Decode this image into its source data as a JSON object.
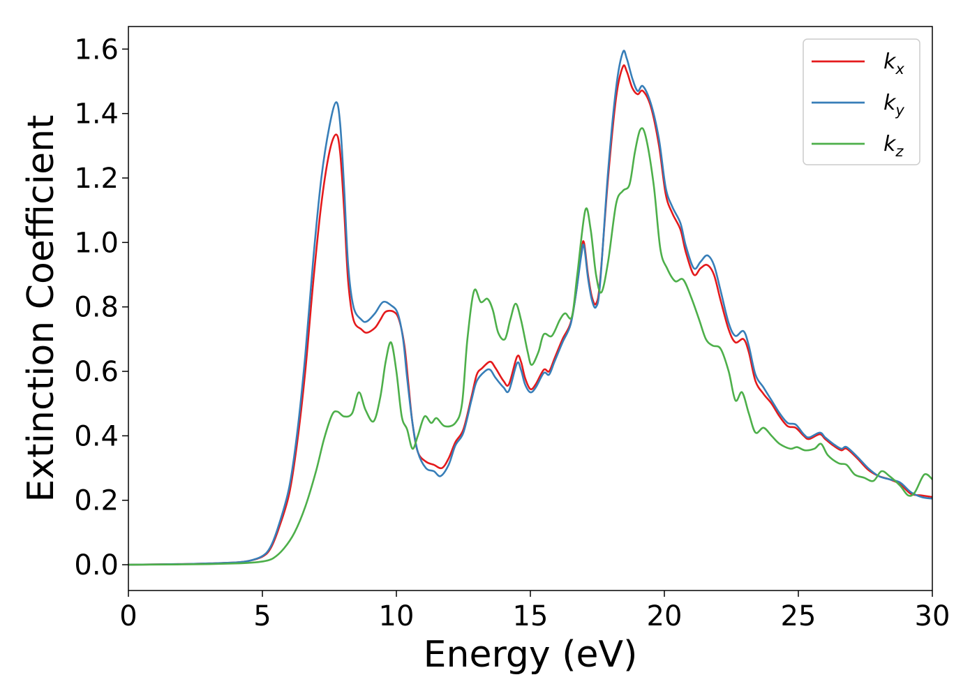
{
  "chart_data": {
    "type": "line",
    "title": "",
    "xlabel": "Energy (eV)",
    "ylabel": "Extinction Coefficient",
    "xlim": [
      0,
      30
    ],
    "ylim": [
      -0.08,
      1.67
    ],
    "xticks": [
      0,
      5,
      10,
      15,
      20,
      25,
      30
    ],
    "xtick_labels": [
      "0",
      "5",
      "10",
      "15",
      "20",
      "25",
      "30"
    ],
    "yticks": [
      0.0,
      0.2,
      0.4,
      0.6,
      0.8,
      1.0,
      1.2,
      1.4,
      1.6
    ],
    "ytick_labels": [
      "0.0",
      "0.2",
      "0.4",
      "0.6",
      "0.8",
      "1.0",
      "1.2",
      "1.4",
      "1.6"
    ],
    "grid": false,
    "legend_position": "top-right",
    "series": [
      {
        "name": "k_x",
        "base": "k",
        "sub": "x",
        "color": "#e41a1c",
        "points": [
          [
            0,
            0
          ],
          [
            2,
            0.002
          ],
          [
            3,
            0.004
          ],
          [
            4,
            0.007
          ],
          [
            4.5,
            0.012
          ],
          [
            5,
            0.025
          ],
          [
            5.3,
            0.05
          ],
          [
            5.6,
            0.11
          ],
          [
            6,
            0.22
          ],
          [
            6.3,
            0.38
          ],
          [
            6.6,
            0.6
          ],
          [
            6.9,
            0.88
          ],
          [
            7.2,
            1.12
          ],
          [
            7.5,
            1.28
          ],
          [
            7.75,
            1.335
          ],
          [
            7.9,
            1.28
          ],
          [
            8.05,
            1.1
          ],
          [
            8.2,
            0.88
          ],
          [
            8.4,
            0.76
          ],
          [
            8.7,
            0.73
          ],
          [
            8.9,
            0.72
          ],
          [
            9.2,
            0.735
          ],
          [
            9.4,
            0.76
          ],
          [
            9.6,
            0.785
          ],
          [
            9.9,
            0.785
          ],
          [
            10.1,
            0.76
          ],
          [
            10.3,
            0.68
          ],
          [
            10.45,
            0.56
          ],
          [
            10.6,
            0.44
          ],
          [
            10.8,
            0.35
          ],
          [
            11.1,
            0.32
          ],
          [
            11.4,
            0.31
          ],
          [
            11.7,
            0.3
          ],
          [
            11.95,
            0.33
          ],
          [
            12.2,
            0.38
          ],
          [
            12.5,
            0.42
          ],
          [
            12.8,
            0.52
          ],
          [
            13,
            0.59
          ],
          [
            13.2,
            0.61
          ],
          [
            13.5,
            0.63
          ],
          [
            13.7,
            0.61
          ],
          [
            14,
            0.57
          ],
          [
            14.2,
            0.56
          ],
          [
            14.5,
            0.645
          ],
          [
            14.65,
            0.63
          ],
          [
            14.8,
            0.58
          ],
          [
            15,
            0.545
          ],
          [
            15.2,
            0.56
          ],
          [
            15.5,
            0.605
          ],
          [
            15.7,
            0.6
          ],
          [
            15.9,
            0.64
          ],
          [
            16.2,
            0.7
          ],
          [
            16.5,
            0.75
          ],
          [
            16.7,
            0.84
          ],
          [
            16.9,
            0.97
          ],
          [
            17,
            1.0
          ],
          [
            17.15,
            0.9
          ],
          [
            17.3,
            0.83
          ],
          [
            17.45,
            0.81
          ],
          [
            17.6,
            0.88
          ],
          [
            17.9,
            1.2
          ],
          [
            18.2,
            1.45
          ],
          [
            18.45,
            1.545
          ],
          [
            18.6,
            1.53
          ],
          [
            18.8,
            1.48
          ],
          [
            19,
            1.46
          ],
          [
            19.2,
            1.47
          ],
          [
            19.5,
            1.42
          ],
          [
            19.8,
            1.3
          ],
          [
            20.05,
            1.15
          ],
          [
            20.3,
            1.09
          ],
          [
            20.6,
            1.04
          ],
          [
            20.8,
            0.97
          ],
          [
            21.1,
            0.9
          ],
          [
            21.35,
            0.92
          ],
          [
            21.6,
            0.93
          ],
          [
            21.85,
            0.9
          ],
          [
            22.1,
            0.82
          ],
          [
            22.4,
            0.73
          ],
          [
            22.65,
            0.69
          ],
          [
            22.95,
            0.7
          ],
          [
            23.15,
            0.66
          ],
          [
            23.4,
            0.57
          ],
          [
            23.7,
            0.53
          ],
          [
            24,
            0.5
          ],
          [
            24.3,
            0.46
          ],
          [
            24.6,
            0.43
          ],
          [
            24.9,
            0.425
          ],
          [
            25.2,
            0.4
          ],
          [
            25.4,
            0.39
          ],
          [
            25.8,
            0.405
          ],
          [
            26,
            0.39
          ],
          [
            26.3,
            0.37
          ],
          [
            26.6,
            0.355
          ],
          [
            26.8,
            0.36
          ],
          [
            27.2,
            0.33
          ],
          [
            27.6,
            0.295
          ],
          [
            28,
            0.275
          ],
          [
            28.4,
            0.265
          ],
          [
            28.8,
            0.25
          ],
          [
            29.2,
            0.22
          ],
          [
            29.6,
            0.215
          ],
          [
            30,
            0.21
          ]
        ]
      },
      {
        "name": "k_y",
        "base": "k",
        "sub": "y",
        "color": "#377eb8",
        "points": [
          [
            0,
            0
          ],
          [
            2,
            0.002
          ],
          [
            3,
            0.004
          ],
          [
            4,
            0.007
          ],
          [
            4.5,
            0.012
          ],
          [
            5,
            0.027
          ],
          [
            5.3,
            0.055
          ],
          [
            5.6,
            0.12
          ],
          [
            6,
            0.24
          ],
          [
            6.3,
            0.41
          ],
          [
            6.6,
            0.65
          ],
          [
            6.9,
            0.95
          ],
          [
            7.2,
            1.2
          ],
          [
            7.5,
            1.36
          ],
          [
            7.75,
            1.435
          ],
          [
            7.9,
            1.37
          ],
          [
            8.05,
            1.17
          ],
          [
            8.2,
            0.93
          ],
          [
            8.4,
            0.8
          ],
          [
            8.7,
            0.76
          ],
          [
            8.9,
            0.755
          ],
          [
            9.2,
            0.78
          ],
          [
            9.5,
            0.815
          ],
          [
            9.8,
            0.805
          ],
          [
            10.05,
            0.78
          ],
          [
            10.25,
            0.7
          ],
          [
            10.4,
            0.58
          ],
          [
            10.6,
            0.44
          ],
          [
            10.8,
            0.35
          ],
          [
            11.1,
            0.3
          ],
          [
            11.4,
            0.29
          ],
          [
            11.65,
            0.275
          ],
          [
            11.95,
            0.31
          ],
          [
            12.2,
            0.37
          ],
          [
            12.5,
            0.41
          ],
          [
            12.8,
            0.51
          ],
          [
            13,
            0.57
          ],
          [
            13.3,
            0.6
          ],
          [
            13.5,
            0.605
          ],
          [
            13.7,
            0.58
          ],
          [
            14,
            0.55
          ],
          [
            14.2,
            0.54
          ],
          [
            14.5,
            0.625
          ],
          [
            14.65,
            0.605
          ],
          [
            14.8,
            0.56
          ],
          [
            15,
            0.535
          ],
          [
            15.2,
            0.55
          ],
          [
            15.5,
            0.595
          ],
          [
            15.7,
            0.59
          ],
          [
            15.9,
            0.63
          ],
          [
            16.2,
            0.69
          ],
          [
            16.5,
            0.745
          ],
          [
            16.7,
            0.84
          ],
          [
            16.9,
            0.96
          ],
          [
            17,
            0.99
          ],
          [
            17.15,
            0.89
          ],
          [
            17.3,
            0.82
          ],
          [
            17.45,
            0.8
          ],
          [
            17.6,
            0.87
          ],
          [
            17.9,
            1.22
          ],
          [
            18.2,
            1.48
          ],
          [
            18.45,
            1.59
          ],
          [
            18.6,
            1.57
          ],
          [
            18.8,
            1.51
          ],
          [
            19,
            1.47
          ],
          [
            19.2,
            1.485
          ],
          [
            19.5,
            1.43
          ],
          [
            19.8,
            1.32
          ],
          [
            20.05,
            1.17
          ],
          [
            20.3,
            1.11
          ],
          [
            20.6,
            1.06
          ],
          [
            20.8,
            0.99
          ],
          [
            21.1,
            0.92
          ],
          [
            21.35,
            0.94
          ],
          [
            21.6,
            0.96
          ],
          [
            21.85,
            0.93
          ],
          [
            22.1,
            0.85
          ],
          [
            22.4,
            0.75
          ],
          [
            22.65,
            0.71
          ],
          [
            22.95,
            0.725
          ],
          [
            23.15,
            0.68
          ],
          [
            23.4,
            0.59
          ],
          [
            23.7,
            0.55
          ],
          [
            24,
            0.51
          ],
          [
            24.3,
            0.47
          ],
          [
            24.6,
            0.44
          ],
          [
            24.9,
            0.435
          ],
          [
            25.2,
            0.405
          ],
          [
            25.4,
            0.395
          ],
          [
            25.8,
            0.41
          ],
          [
            26,
            0.395
          ],
          [
            26.3,
            0.375
          ],
          [
            26.6,
            0.36
          ],
          [
            26.8,
            0.365
          ],
          [
            27.2,
            0.335
          ],
          [
            27.6,
            0.3
          ],
          [
            28,
            0.275
          ],
          [
            28.4,
            0.265
          ],
          [
            28.8,
            0.255
          ],
          [
            29.2,
            0.225
          ],
          [
            29.6,
            0.21
          ],
          [
            30,
            0.205
          ]
        ]
      },
      {
        "name": "k_z",
        "base": "k",
        "sub": "z",
        "color": "#4daf4a",
        "points": [
          [
            0,
            0
          ],
          [
            2,
            0.001
          ],
          [
            3,
            0.002
          ],
          [
            4,
            0.004
          ],
          [
            4.5,
            0.006
          ],
          [
            5,
            0.01
          ],
          [
            5.4,
            0.02
          ],
          [
            5.8,
            0.05
          ],
          [
            6.2,
            0.1
          ],
          [
            6.6,
            0.18
          ],
          [
            7,
            0.29
          ],
          [
            7.3,
            0.39
          ],
          [
            7.6,
            0.465
          ],
          [
            7.8,
            0.475
          ],
          [
            8.05,
            0.46
          ],
          [
            8.35,
            0.47
          ],
          [
            8.6,
            0.535
          ],
          [
            8.85,
            0.48
          ],
          [
            9.15,
            0.445
          ],
          [
            9.4,
            0.52
          ],
          [
            9.6,
            0.63
          ],
          [
            9.8,
            0.69
          ],
          [
            10,
            0.6
          ],
          [
            10.2,
            0.46
          ],
          [
            10.4,
            0.42
          ],
          [
            10.6,
            0.36
          ],
          [
            10.8,
            0.4
          ],
          [
            11.05,
            0.46
          ],
          [
            11.3,
            0.44
          ],
          [
            11.5,
            0.455
          ],
          [
            11.8,
            0.43
          ],
          [
            12.2,
            0.44
          ],
          [
            12.45,
            0.5
          ],
          [
            12.65,
            0.7
          ],
          [
            12.9,
            0.85
          ],
          [
            13.15,
            0.815
          ],
          [
            13.4,
            0.825
          ],
          [
            13.6,
            0.79
          ],
          [
            13.8,
            0.72
          ],
          [
            14.05,
            0.7
          ],
          [
            14.25,
            0.76
          ],
          [
            14.45,
            0.81
          ],
          [
            14.65,
            0.76
          ],
          [
            14.9,
            0.66
          ],
          [
            15.05,
            0.62
          ],
          [
            15.3,
            0.66
          ],
          [
            15.5,
            0.715
          ],
          [
            15.8,
            0.71
          ],
          [
            16.1,
            0.76
          ],
          [
            16.3,
            0.78
          ],
          [
            16.55,
            0.77
          ],
          [
            16.75,
            0.9
          ],
          [
            17.05,
            1.1
          ],
          [
            17.25,
            1.04
          ],
          [
            17.45,
            0.9
          ],
          [
            17.65,
            0.845
          ],
          [
            17.9,
            0.94
          ],
          [
            18.2,
            1.12
          ],
          [
            18.45,
            1.16
          ],
          [
            18.7,
            1.18
          ],
          [
            18.9,
            1.28
          ],
          [
            19.1,
            1.35
          ],
          [
            19.3,
            1.33
          ],
          [
            19.6,
            1.18
          ],
          [
            19.85,
            0.98
          ],
          [
            20.1,
            0.92
          ],
          [
            20.4,
            0.88
          ],
          [
            20.7,
            0.885
          ],
          [
            21,
            0.83
          ],
          [
            21.3,
            0.76
          ],
          [
            21.55,
            0.7
          ],
          [
            21.8,
            0.68
          ],
          [
            22.1,
            0.67
          ],
          [
            22.4,
            0.6
          ],
          [
            22.65,
            0.51
          ],
          [
            22.9,
            0.535
          ],
          [
            23.15,
            0.47
          ],
          [
            23.4,
            0.41
          ],
          [
            23.7,
            0.425
          ],
          [
            24,
            0.4
          ],
          [
            24.3,
            0.375
          ],
          [
            24.7,
            0.36
          ],
          [
            24.95,
            0.365
          ],
          [
            25.25,
            0.355
          ],
          [
            25.6,
            0.36
          ],
          [
            25.85,
            0.375
          ],
          [
            26.1,
            0.34
          ],
          [
            26.5,
            0.315
          ],
          [
            26.8,
            0.31
          ],
          [
            27.1,
            0.28
          ],
          [
            27.45,
            0.27
          ],
          [
            27.8,
            0.26
          ],
          [
            28.1,
            0.29
          ],
          [
            28.4,
            0.275
          ],
          [
            28.8,
            0.245
          ],
          [
            29.1,
            0.215
          ],
          [
            29.35,
            0.225
          ],
          [
            29.7,
            0.28
          ],
          [
            30,
            0.265
          ]
        ]
      }
    ]
  }
}
